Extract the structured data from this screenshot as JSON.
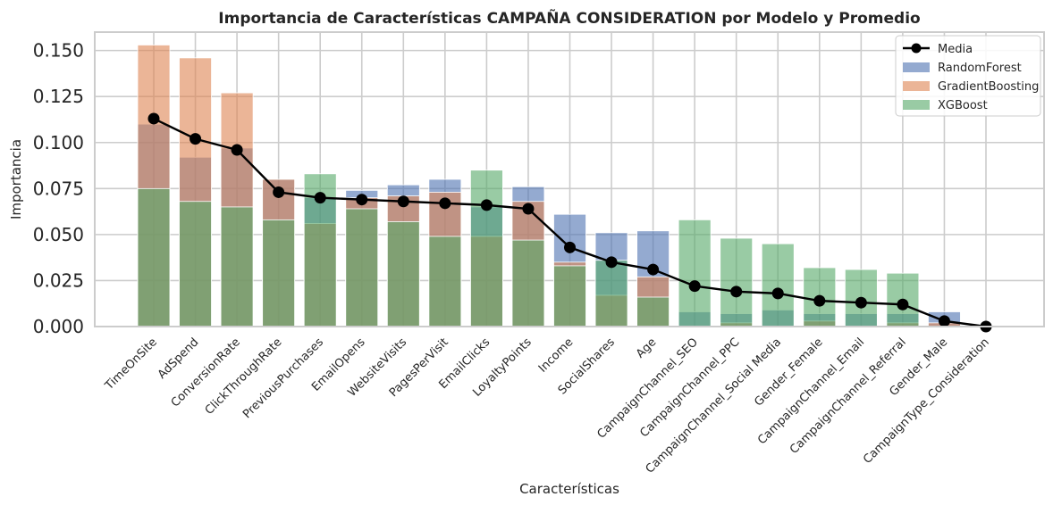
{
  "chart_data": {
    "type": "bar",
    "title": "Importancia de Características CAMPAÑA CONSIDERATION por Modelo y Promedio",
    "xlabel": "Características",
    "ylabel": "Importancia",
    "ylim": [
      0,
      0.16
    ],
    "yticks": [
      "0.000",
      "0.025",
      "0.050",
      "0.075",
      "0.100",
      "0.125",
      "0.150"
    ],
    "ytick_values": [
      0,
      0.025,
      0.05,
      0.075,
      0.1,
      0.125,
      0.15
    ],
    "grid": true,
    "legend_position": "top-right",
    "categories": [
      "TimeOnSite",
      "AdSpend",
      "ConversionRate",
      "ClickThroughRate",
      "PreviousPurchases",
      "EmailOpens",
      "WebsiteVisits",
      "PagesPerVisit",
      "EmailClicks",
      "LoyaltyPoints",
      "Income",
      "SocialShares",
      "Age",
      "CampaignChannel_SEO",
      "CampaignChannel_PPC",
      "CampaignChannel_Social Media",
      "Gender_Female",
      "CampaignChannel_Email",
      "CampaignChannel_Referral",
      "Gender_Male",
      "CampaignType_Consideration"
    ],
    "series": [
      {
        "name": "RandomForest",
        "kind": "bar",
        "color": "#4c72b0",
        "values": [
          0.11,
          0.092,
          0.097,
          0.08,
          0.07,
          0.074,
          0.077,
          0.08,
          0.065,
          0.076,
          0.061,
          0.051,
          0.052,
          0.008,
          0.007,
          0.009,
          0.007,
          0.007,
          0.007,
          0.008,
          0.0
        ]
      },
      {
        "name": "GradientBoosting",
        "kind": "bar",
        "color": "#dd8452",
        "values": [
          0.153,
          0.146,
          0.127,
          0.08,
          0.056,
          0.07,
          0.071,
          0.073,
          0.049,
          0.068,
          0.035,
          0.017,
          0.027,
          0.0,
          0.002,
          0.0,
          0.003,
          0.0,
          0.002,
          0.002,
          0.0
        ]
      },
      {
        "name": "XGBoost",
        "kind": "bar",
        "color": "#55a868",
        "values": [
          0.075,
          0.068,
          0.065,
          0.058,
          0.083,
          0.064,
          0.057,
          0.049,
          0.085,
          0.047,
          0.033,
          0.036,
          0.016,
          0.058,
          0.048,
          0.045,
          0.032,
          0.031,
          0.029,
          0.0,
          0.0
        ]
      },
      {
        "name": "Media",
        "kind": "line",
        "color": "#000000",
        "values": [
          0.113,
          0.102,
          0.096,
          0.073,
          0.07,
          0.069,
          0.068,
          0.067,
          0.066,
          0.064,
          0.043,
          0.035,
          0.031,
          0.022,
          0.019,
          0.018,
          0.014,
          0.013,
          0.012,
          0.003,
          0.0
        ]
      }
    ]
  }
}
